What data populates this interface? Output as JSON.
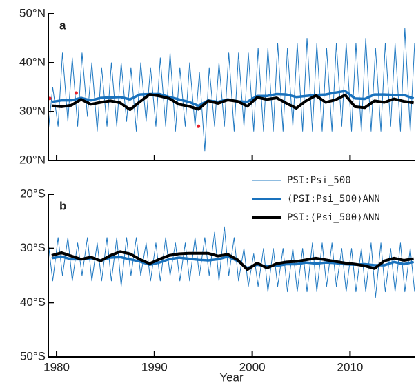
{
  "chart_data": [
    {
      "type": "line",
      "panel_label": "a",
      "xlim": [
        1979.15,
        2016.6
      ],
      "xticks": [
        1980,
        1990,
        2000,
        2010
      ],
      "show_xtick_labels": false,
      "ylim": [
        20,
        50
      ],
      "yticks": [
        {
          "value": 20,
          "label": "20°N"
        },
        {
          "value": 30,
          "label": "30°N"
        },
        {
          "value": 40,
          "label": "40°N"
        },
        {
          "value": 50,
          "label": "50°N"
        }
      ],
      "x": [
        1979.15,
        1979.6,
        1980.15,
        1980.6,
        1981.15,
        1981.6,
        1982.15,
        1982.6,
        1983.15,
        1983.6,
        1984.15,
        1984.6,
        1985.15,
        1985.6,
        1986.15,
        1986.6,
        1987.15,
        1987.6,
        1988.15,
        1988.6,
        1989.15,
        1989.6,
        1990.15,
        1990.6,
        1991.15,
        1991.6,
        1992.15,
        1992.6,
        1993.15,
        1993.6,
        1994.15,
        1994.6,
        1995.15,
        1995.6,
        1996.15,
        1996.6,
        1997.15,
        1997.6,
        1998.15,
        1998.6,
        1999.15,
        1999.6,
        2000.15,
        2000.6,
        2001.15,
        2001.6,
        2002.15,
        2002.6,
        2003.15,
        2003.6,
        2004.15,
        2004.6,
        2005.15,
        2005.6,
        2006.15,
        2006.6,
        2007.15,
        2007.6,
        2008.15,
        2008.6,
        2009.15,
        2009.6,
        2010.15,
        2010.6,
        2011.15,
        2011.6,
        2012.15,
        2012.6,
        2013.15,
        2013.6,
        2014.15,
        2014.6,
        2015.15,
        2015.6,
        2016.15,
        2016.6
      ],
      "series": [
        {
          "color": "#1f78c1",
          "width": 1,
          "values": [
            26,
            35,
            27,
            42,
            28,
            41,
            27,
            42,
            29,
            40,
            26,
            39,
            27,
            40,
            27,
            40,
            28,
            39,
            26,
            40,
            28,
            39,
            27,
            41,
            27,
            42,
            26,
            39,
            27,
            40,
            27,
            38,
            22,
            39,
            27,
            40,
            27,
            42,
            26,
            42,
            27,
            42,
            26,
            43,
            26,
            43,
            26,
            44,
            26,
            43,
            27,
            44,
            26,
            45,
            26,
            44,
            26,
            43,
            26,
            44,
            27,
            44,
            26,
            44,
            26,
            45,
            26,
            43,
            26,
            44,
            27,
            44,
            26,
            47,
            26,
            44
          ]
        },
        {
          "color": "#1a72bd",
          "width": 3.5,
          "x": [
            1979.5,
            1980.5,
            1981.5,
            1982.5,
            1983.5,
            1984.5,
            1985.5,
            1986.5,
            1987.5,
            1988.5,
            1989.5,
            1990.5,
            1991.5,
            1992.5,
            1993.5,
            1994.5,
            1995.5,
            1996.5,
            1997.5,
            1998.5,
            1999.5,
            2000.5,
            2001.5,
            2002.5,
            2003.5,
            2004.5,
            2005.5,
            2006.5,
            2007.5,
            2008.5,
            2009.5,
            2010.5,
            2011.5,
            2012.5,
            2013.5,
            2014.5,
            2015.5,
            2016.5
          ],
          "values": [
            32.0,
            32.3,
            32.3,
            32.8,
            32.3,
            32.8,
            32.9,
            33.0,
            32.5,
            33.5,
            33.6,
            33.6,
            33.0,
            32.5,
            32.0,
            31.2,
            32.3,
            32.0,
            32.5,
            32.1,
            32.0,
            33.2,
            33.2,
            33.6,
            33.5,
            33.0,
            33.2,
            33.4,
            33.5,
            33.9,
            34.2,
            32.7,
            32.6,
            33.5,
            33.5,
            33.4,
            33.4,
            32.7
          ]
        },
        {
          "color": "#000000",
          "width": 4,
          "x": [
            1979.5,
            1980.5,
            1981.5,
            1982.5,
            1983.5,
            1984.5,
            1985.5,
            1986.5,
            1987.5,
            1988.5,
            1989.5,
            1990.5,
            1991.5,
            1992.5,
            1993.5,
            1994.5,
            1995.5,
            1996.5,
            1997.5,
            1998.5,
            1999.5,
            2000.5,
            2001.5,
            2002.5,
            2003.5,
            2004.5,
            2005.5,
            2006.5,
            2007.5,
            2008.5,
            2009.5,
            2010.5,
            2011.5,
            2012.5,
            2013.5,
            2014.5,
            2015.5,
            2016.5
          ],
          "values": [
            31.2,
            31.0,
            31.3,
            32.5,
            31.5,
            31.9,
            32.2,
            31.8,
            30.4,
            32.0,
            33.5,
            33.2,
            32.7,
            31.5,
            31.1,
            30.5,
            32.2,
            31.7,
            32.4,
            32.1,
            31.1,
            32.9,
            32.5,
            32.8,
            31.7,
            30.7,
            32.2,
            33.3,
            31.9,
            32.4,
            33.4,
            31.0,
            30.8,
            32.2,
            31.9,
            32.6,
            32.1,
            31.8
          ]
        }
      ],
      "outliers": {
        "color": "#e8202a",
        "x": [
          1979.3,
          1982.0,
          1994.5
        ],
        "values": [
          32.7,
          33.8,
          27.0
        ]
      }
    },
    {
      "type": "line",
      "panel_label": "b",
      "x_label": "Year",
      "legend": "upper right",
      "xlim": [
        1979.15,
        2016.6
      ],
      "xticks": [
        1980,
        1990,
        2000,
        2010
      ],
      "show_xtick_labels": true,
      "ylim": [
        -50,
        -20
      ],
      "yticks": [
        {
          "value": -20,
          "label": "20°S"
        },
        {
          "value": -30,
          "label": "30°S"
        },
        {
          "value": -40,
          "label": "40°S"
        },
        {
          "value": -50,
          "label": "50°S"
        }
      ],
      "x": [
        1979.15,
        1979.6,
        1980.15,
        1980.6,
        1981.15,
        1981.6,
        1982.15,
        1982.6,
        1983.15,
        1983.6,
        1984.15,
        1984.6,
        1985.15,
        1985.6,
        1986.15,
        1986.6,
        1987.15,
        1987.6,
        1988.15,
        1988.6,
        1989.15,
        1989.6,
        1990.15,
        1990.6,
        1991.15,
        1991.6,
        1992.15,
        1992.6,
        1993.15,
        1993.6,
        1994.15,
        1994.6,
        1995.15,
        1995.6,
        1996.15,
        1996.6,
        1997.15,
        1997.6,
        1998.15,
        1998.6,
        1999.15,
        1999.6,
        2000.15,
        2000.6,
        2001.15,
        2001.6,
        2002.15,
        2002.6,
        2003.15,
        2003.6,
        2004.15,
        2004.6,
        2005.15,
        2005.6,
        2006.15,
        2006.6,
        2007.15,
        2007.6,
        2008.15,
        2008.6,
        2009.15,
        2009.6,
        2010.15,
        2010.6,
        2011.15,
        2011.6,
        2012.15,
        2012.6,
        2013.15,
        2013.6,
        2014.15,
        2014.6,
        2015.15,
        2015.6,
        2016.15,
        2016.6
      ],
      "series": [
        {
          "name": "PSI:Psi_500",
          "color": "#1f78c1",
          "width": 1,
          "values": [
            -29,
            -36,
            -28,
            -35,
            -28,
            -36,
            -29,
            -35,
            -28,
            -36,
            -29,
            -36,
            -28,
            -36,
            -28,
            -37,
            -28,
            -35,
            -28,
            -35,
            -29,
            -36,
            -29,
            -36,
            -28,
            -35,
            -29,
            -36,
            -29,
            -36,
            -28,
            -35,
            -28,
            -35,
            -27,
            -36,
            -26,
            -35,
            -28,
            -36,
            -30,
            -37,
            -31,
            -37,
            -30,
            -38,
            -30,
            -37,
            -30,
            -38,
            -30,
            -38,
            -30,
            -38,
            -29,
            -38,
            -29,
            -37,
            -29,
            -37,
            -30,
            -38,
            -30,
            -38,
            -30,
            -38,
            -29,
            -39,
            -29,
            -38,
            -30,
            -38,
            -29,
            -38,
            -30,
            -38
          ]
        },
        {
          "name": "⟨PSI:Psi_500⟩ANN",
          "color": "#1a72bd",
          "width": 3.5,
          "x": [
            1979.5,
            1980.5,
            1981.5,
            1982.5,
            1983.5,
            1984.5,
            1985.5,
            1986.5,
            1987.5,
            1988.5,
            1989.5,
            1990.5,
            1991.5,
            1992.5,
            1993.5,
            1994.5,
            1995.5,
            1996.5,
            1997.5,
            1998.5,
            1999.5,
            2000.5,
            2001.5,
            2002.5,
            2003.5,
            2004.5,
            2005.5,
            2006.5,
            2007.5,
            2008.5,
            2009.5,
            2010.5,
            2011.5,
            2012.5,
            2013.5,
            2014.5,
            2015.5,
            2016.5
          ],
          "values": [
            -31.8,
            -31.5,
            -32.0,
            -32.0,
            -31.8,
            -32.2,
            -31.7,
            -31.6,
            -32.0,
            -32.4,
            -33.0,
            -32.6,
            -32.0,
            -31.7,
            -31.9,
            -32.1,
            -32.2,
            -32.0,
            -31.5,
            -32.3,
            -33.6,
            -33.0,
            -33.3,
            -33.2,
            -32.9,
            -32.9,
            -32.6,
            -32.8,
            -32.6,
            -32.7,
            -32.9,
            -33.0,
            -32.9,
            -33.1,
            -33.1,
            -32.5,
            -32.9,
            -32.5
          ]
        },
        {
          "name": "PSI:⟨Psi_500⟩ANN",
          "color": "#000000",
          "width": 4,
          "x": [
            1979.5,
            1980.5,
            1981.5,
            1982.5,
            1983.5,
            1984.5,
            1985.5,
            1986.5,
            1987.5,
            1988.5,
            1989.5,
            1990.5,
            1991.5,
            1992.5,
            1993.5,
            1994.5,
            1995.5,
            1996.5,
            1997.5,
            1998.5,
            1999.5,
            2000.5,
            2001.5,
            2002.5,
            2003.5,
            2004.5,
            2005.5,
            2006.5,
            2007.5,
            2008.5,
            2009.5,
            2010.5,
            2011.5,
            2012.5,
            2013.5,
            2014.5,
            2015.5,
            2016.5
          ],
          "values": [
            -31.3,
            -30.8,
            -31.4,
            -32.0,
            -31.6,
            -32.3,
            -31.3,
            -30.6,
            -31.0,
            -32.0,
            -32.8,
            -32.0,
            -31.3,
            -31.0,
            -30.9,
            -30.9,
            -30.9,
            -31.4,
            -31.1,
            -32.1,
            -33.9,
            -32.7,
            -33.6,
            -32.8,
            -32.5,
            -32.4,
            -32.1,
            -31.8,
            -32.1,
            -32.4,
            -32.7,
            -32.9,
            -33.2,
            -33.7,
            -32.3,
            -31.8,
            -32.2,
            -31.9
          ]
        }
      ]
    }
  ]
}
